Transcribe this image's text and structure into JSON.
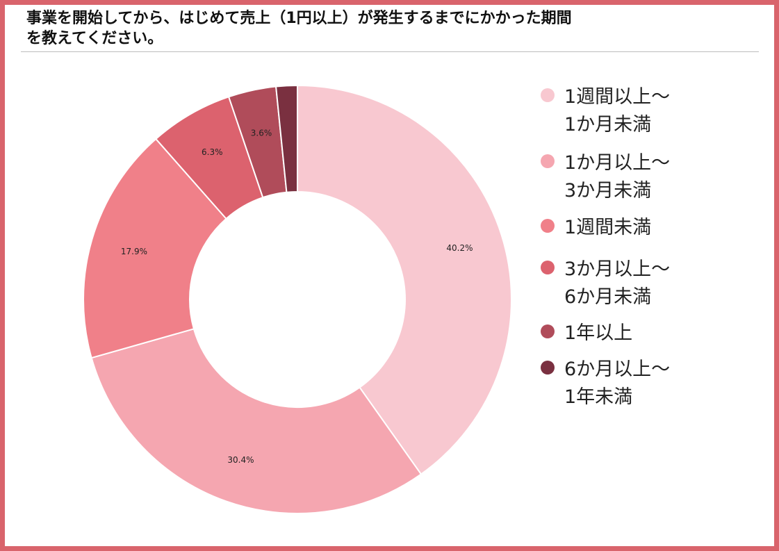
{
  "title": {
    "line1": "事業を開始してから、はじめて売上（1円以上）が発生するまでにかかった期間",
    "line2": "を教えてください。"
  },
  "chart_data": {
    "type": "pie",
    "donut": true,
    "title": "事業を開始してから、はじめて売上（1円以上）が発生するまでにかかった期間を教えてください。",
    "slices": [
      {
        "label_lines": [
          "1週間以上～",
          "1か月未満"
        ],
        "value": 40.2,
        "value_label": "40.2%",
        "color": "#f8c8d0"
      },
      {
        "label_lines": [
          "1か月以上～",
          "3か月未満"
        ],
        "value": 30.4,
        "value_label": "30.4%",
        "color": "#f5a6b0"
      },
      {
        "label_lines": [
          "1週間未満"
        ],
        "value": 17.9,
        "value_label": "17.9%",
        "color": "#f08089"
      },
      {
        "label_lines": [
          "3か月以上～",
          "6か月未満"
        ],
        "value": 6.3,
        "value_label": "6.3%",
        "color": "#dc626e"
      },
      {
        "label_lines": [
          "1年以上"
        ],
        "value": 3.6,
        "value_label": "3.6%",
        "color": "#b04c5a"
      },
      {
        "label_lines": [
          "6か月以上～",
          "1年未満"
        ],
        "value": 1.6,
        "value_label": "",
        "color": "#7a3040"
      }
    ],
    "legend_position": "right"
  },
  "colors": {
    "frame": "#d9646c",
    "rule": "#bcbcbc"
  }
}
